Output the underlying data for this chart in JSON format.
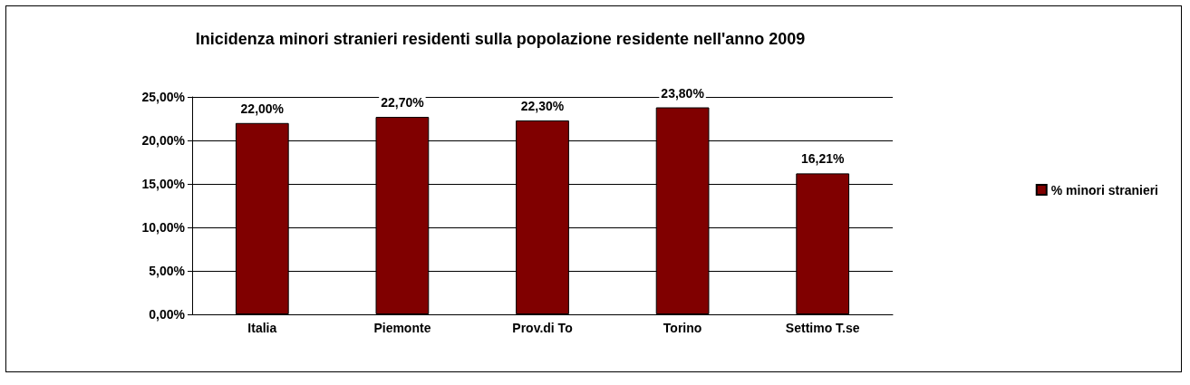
{
  "chart_data": {
    "type": "bar",
    "title": "Inicidenza minori stranieri residenti sulla popolazione residente nell'anno 2009",
    "categories": [
      "Italia",
      "Piemonte",
      "Prov.di To",
      "Torino",
      "Settimo T.se"
    ],
    "series": [
      {
        "name": "% minori stranieri",
        "color": "#800000",
        "values": [
          22.0,
          22.7,
          22.3,
          23.8,
          16.21
        ],
        "value_labels": [
          "22,00%",
          "22,70%",
          "22,30%",
          "23,80%",
          "16,21%"
        ]
      }
    ],
    "ylim": [
      0,
      25
    ],
    "yticks": [
      {
        "value": 0,
        "label": "0,00%"
      },
      {
        "value": 5,
        "label": "5,00%"
      },
      {
        "value": 10,
        "label": "10,00%"
      },
      {
        "value": 15,
        "label": "15,00%"
      },
      {
        "value": 20,
        "label": "20,00%"
      },
      {
        "value": 25,
        "label": "25,00%"
      }
    ],
    "grid": true,
    "legend": "right"
  }
}
